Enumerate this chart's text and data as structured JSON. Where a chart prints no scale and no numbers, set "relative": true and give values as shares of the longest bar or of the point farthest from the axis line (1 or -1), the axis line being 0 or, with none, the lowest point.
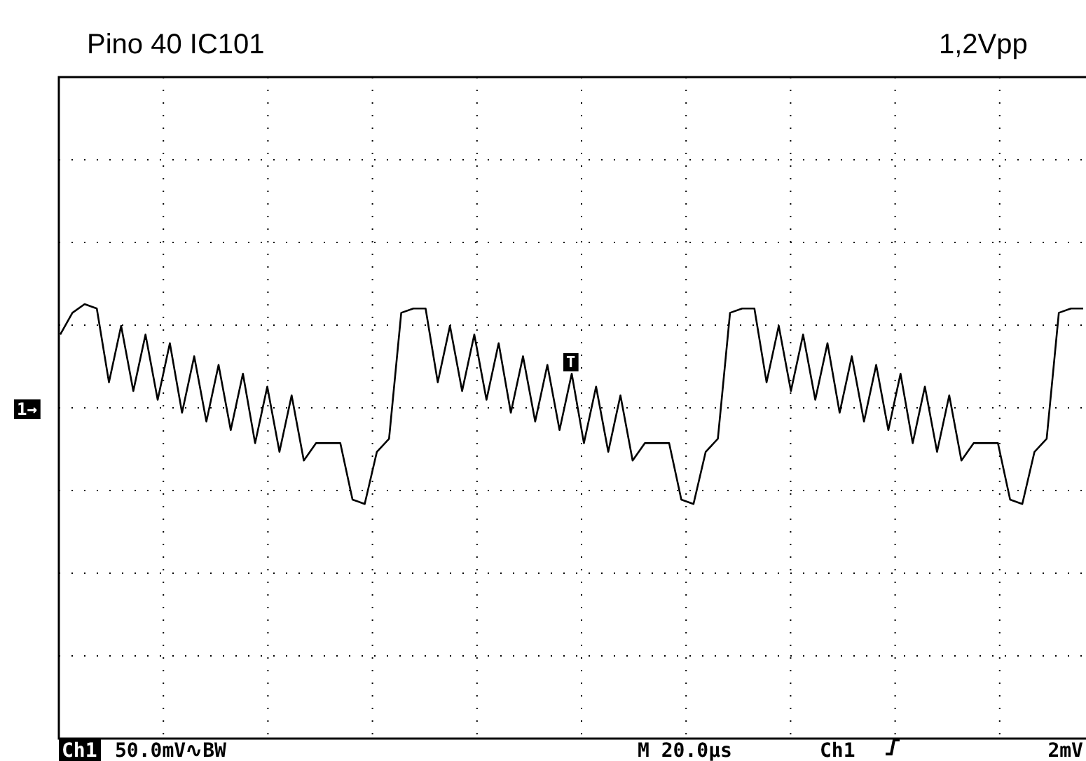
{
  "chart_data": {
    "type": "line",
    "title": "Pino 40 IC101",
    "relative": true,
    "color": "#000000",
    "grid": true,
    "marker": "none",
    "line_style": "solid",
    "categories": [
      null,
      null,
      null,
      null,
      null,
      null,
      null,
      null,
      null,
      null,
      null,
      null,
      null,
      null,
      null,
      null,
      null,
      null,
      null,
      null,
      null,
      null,
      null,
      null,
      null,
      null,
      null,
      null,
      null,
      null,
      null,
      null,
      null,
      null,
      null,
      null,
      null,
      null,
      null,
      null,
      null,
      null,
      null,
      null,
      null,
      null,
      null,
      null,
      null,
      null,
      null,
      null,
      null,
      null,
      null,
      null,
      null,
      null,
      null,
      null,
      null,
      null,
      null,
      null,
      null,
      null,
      null,
      null,
      null,
      null,
      null,
      null,
      null,
      null,
      null,
      null,
      null,
      null,
      null,
      null,
      null,
      null,
      null,
      null,
      null
    ],
    "values": [
      0.93,
      0.98,
      1.0,
      0.99,
      0.82,
      0.95,
      0.8,
      0.93,
      0.78,
      0.91,
      0.75,
      0.88,
      0.73,
      0.86,
      0.71,
      0.84,
      0.68,
      0.81,
      0.66,
      0.79,
      0.64,
      0.68,
      0.68,
      0.68,
      0.55,
      0.54,
      0.66,
      0.69,
      0.98,
      0.99,
      0.99,
      0.82,
      0.95,
      0.8,
      0.93,
      0.78,
      0.91,
      0.75,
      0.88,
      0.73,
      0.86,
      0.71,
      0.84,
      0.68,
      0.81,
      0.66,
      0.79,
      0.64,
      0.68,
      0.68,
      0.68,
      0.55,
      0.54,
      0.66,
      0.69,
      0.98,
      0.99,
      0.99,
      0.82,
      0.95,
      0.8,
      0.93,
      0.78,
      0.91,
      0.75,
      0.88,
      0.73,
      0.86,
      0.71,
      0.84,
      0.68,
      0.81,
      0.66,
      0.79,
      0.64,
      0.68,
      0.68,
      0.68,
      0.55,
      0.54,
      0.66,
      0.69,
      0.98,
      0.99,
      0.99
    ],
    "annotations": [
      "1,2Vpp",
      "Ch1",
      "50.0mV∿BW",
      "M 20.0µs",
      "Ch1",
      "2mV",
      "1→",
      "T"
    ]
  }
}
